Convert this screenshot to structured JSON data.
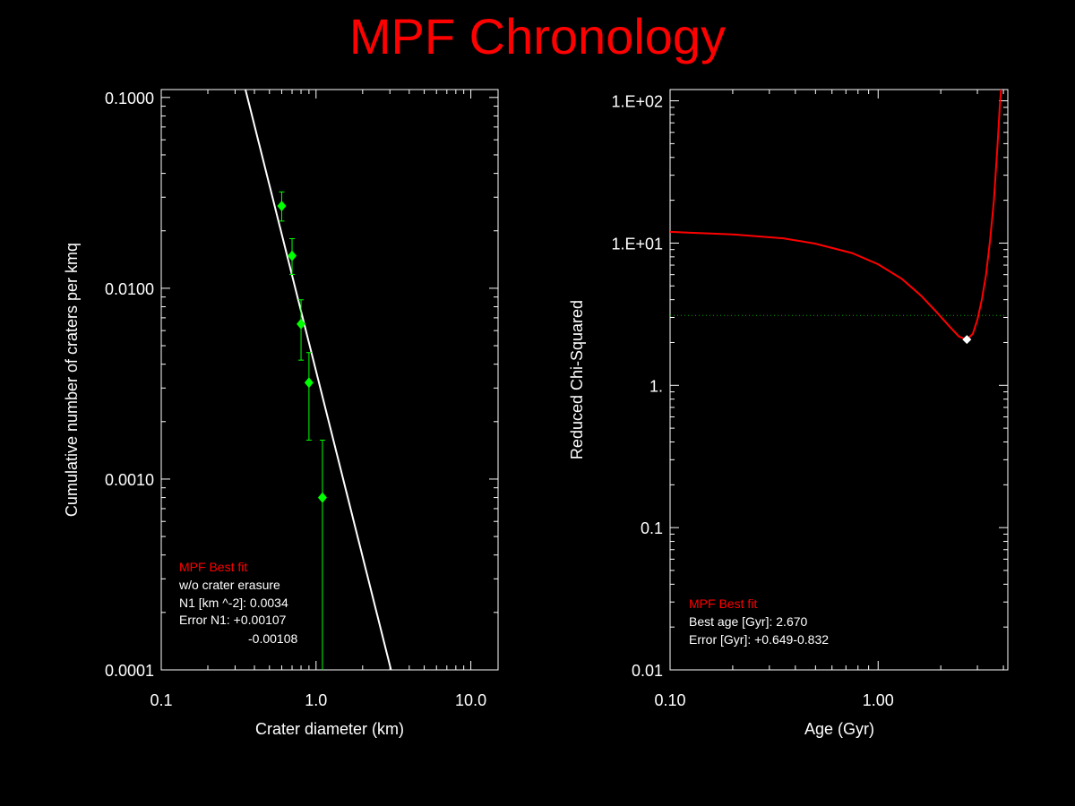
{
  "title": "MPF Chronology",
  "colors": {
    "background": "#000000",
    "title": "#ff0000",
    "axes": "#ffffff",
    "data_points": "#00ff00",
    "fit_line": "#ffffff",
    "curve": "#ff0000",
    "reference_line": "#00aa00",
    "best_marker": "#ffffff"
  },
  "chart_data": [
    {
      "type": "scatter",
      "xlabel": "Crater diameter (km)",
      "ylabel": "Cumulative number of craters per kmq",
      "xscale": "log",
      "yscale": "log",
      "xlim": [
        0.1,
        15.0
      ],
      "ylim": [
        0.0001,
        0.11
      ],
      "xticks": [
        0.1,
        1.0,
        10.0
      ],
      "xtick_labels": [
        "0.1",
        "1.0",
        "10.0"
      ],
      "yticks": [
        0.0001,
        0.001,
        0.01,
        0.1
      ],
      "ytick_labels": [
        "0.0001",
        "0.0010",
        "0.0100",
        "0.1000"
      ],
      "series": [
        {
          "type": "scatter-errorbar",
          "x": [
            0.6,
            0.7,
            0.8,
            0.9,
            1.1
          ],
          "y": [
            0.027,
            0.0148,
            0.0065,
            0.0032,
            0.0008
          ],
          "y_upper": [
            0.032,
            0.0182,
            0.0087,
            0.0046,
            0.0016
          ],
          "y_lower": [
            0.0225,
            0.0118,
            0.0042,
            0.0016,
            0.0001
          ]
        },
        {
          "type": "line",
          "x": [
            0.35,
            3.05
          ],
          "y": [
            0.11,
            0.0001
          ]
        }
      ],
      "legend": {
        "placement": "bottom-left",
        "heading": "MPF Best fit",
        "lines": [
          "w/o crater erasure",
          "N1 [km ^-2]: 0.0034",
          "Error N1: +0.00107",
          "-0.00108"
        ]
      }
    },
    {
      "type": "line",
      "xlabel": "Age (Gyr)",
      "ylabel": "Reduced Chi-Squared",
      "xscale": "log",
      "yscale": "log",
      "xlim": [
        0.1,
        4.2
      ],
      "ylim": [
        0.01,
        120
      ],
      "xticks": [
        0.1,
        1.0
      ],
      "xtick_labels": [
        "0.10",
        "1.00"
      ],
      "yticks": [
        0.01,
        0.1,
        1,
        10,
        100
      ],
      "ytick_labels": [
        "0.01",
        "0.1",
        "1.",
        "1.E+01",
        "1.E+02"
      ],
      "series": [
        {
          "type": "line",
          "x": [
            0.1,
            0.2,
            0.35,
            0.5,
            0.75,
            1.0,
            1.3,
            1.6,
            1.9,
            2.2,
            2.45,
            2.67,
            2.85,
            3.0,
            3.15,
            3.3,
            3.45,
            3.6,
            3.75,
            3.85,
            3.9
          ],
          "y": [
            12.0,
            11.5,
            10.8,
            9.9,
            8.5,
            7.1,
            5.6,
            4.3,
            3.3,
            2.6,
            2.2,
            2.1,
            2.3,
            2.9,
            4.0,
            6.0,
            10.5,
            20.0,
            50.0,
            95.0,
            120.0
          ]
        }
      ],
      "reference_line_y": 3.1,
      "best_point": {
        "x": 2.67,
        "y": 2.1
      },
      "legend": {
        "placement": "bottom-left",
        "heading": "MPF Best fit",
        "lines": [
          "Best age [Gyr]: 2.670",
          "Error [Gyr]: +0.649-0.832"
        ]
      }
    }
  ]
}
